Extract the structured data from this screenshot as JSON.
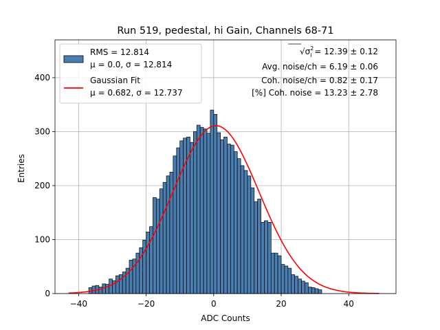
{
  "chart_data": {
    "type": "bar",
    "title": "Run 519, pedestal, hi Gain, Channels 68-71",
    "xlabel": "ADC Counts",
    "ylabel": "Entries",
    "xlim": [
      -47,
      54
    ],
    "ylim": [
      0,
      470
    ],
    "xticks": [
      "−40",
      "−20",
      "0",
      "20",
      "40"
    ],
    "yticks": [
      "0",
      "100",
      "200",
      "300",
      "400"
    ],
    "grid": true,
    "legend_position": "top-left",
    "bin_width": 1,
    "bin_start": -37,
    "values": [
      11,
      14,
      15,
      12,
      18,
      17,
      27,
      24,
      33,
      35,
      40,
      47,
      62,
      64,
      75,
      85,
      99,
      114,
      124,
      178,
      175,
      194,
      206,
      218,
      225,
      255,
      270,
      283,
      288,
      290,
      280,
      300,
      312,
      308,
      305,
      297,
      340,
      332,
      298,
      285,
      290,
      277,
      275,
      263,
      250,
      237,
      228,
      218,
      196,
      170,
      175,
      132,
      135,
      132,
      75,
      75,
      70,
      54,
      51,
      47,
      35,
      32,
      27,
      23,
      20,
      12,
      11,
      9,
      7
    ],
    "series": [
      {
        "name": "RMS = 12.814",
        "sub": "μ = 0.0, σ = 12.814",
        "color": "#4a7eb0",
        "kind": "histogram"
      },
      {
        "name": "Gaussian Fit",
        "sub": "μ = 0.682, σ = 12.737",
        "color": "#ff0000",
        "kind": "line",
        "mu": 0.682,
        "sigma": 12.737,
        "peak": 311,
        "x_range": [
          -43,
          49
        ]
      }
    ],
    "annotations": [
      {
        "prefix": "√",
        "var": "σ",
        "sup": "2",
        "sub": "i",
        "text": " = 12.39 ± 0.12"
      },
      {
        "text": "Avg. noise/ch = 6.19 ± 0.06"
      },
      {
        "text": "Coh. noise/ch = 0.82 ± 0.17"
      },
      {
        "text": "[%] Coh. noise = 13.23 ± 2.78"
      }
    ]
  }
}
